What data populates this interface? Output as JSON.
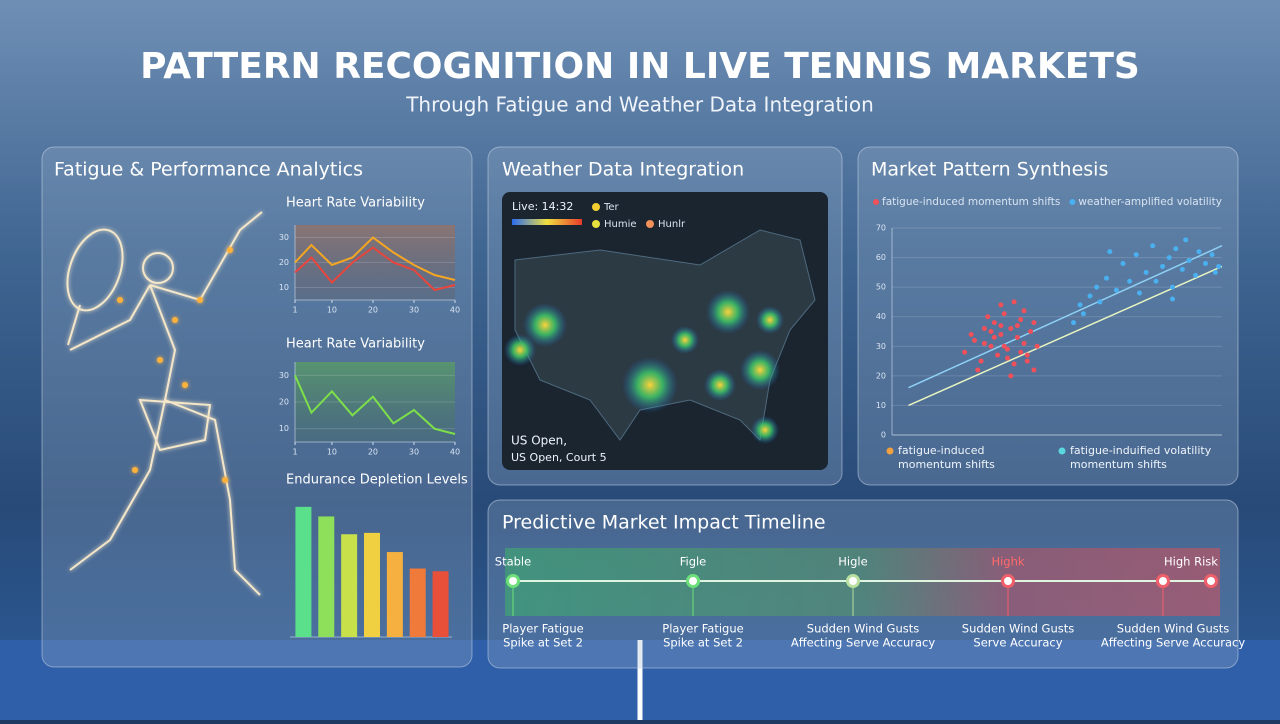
{
  "header": {
    "title": "PATTERN RECOGNITION IN LIVE TENNIS MARKETS",
    "subtitle": "Through Fatigue and Weather Data Integration"
  },
  "panels": {
    "fatigue": {
      "title": "Fatigue & Performance Analytics"
    },
    "weather": {
      "title": "Weather Data Integration",
      "live_label": "Live: 14:32",
      "legend": [
        "Ter",
        "Humie",
        "Hunlr"
      ],
      "venue": "US Open,",
      "court": "US Open, Court 5"
    },
    "market": {
      "title": "Market Pattern Synthesis",
      "footer_legend": [
        {
          "text": "fatigue-induced momentum shifts",
          "color": "#f0a040"
        },
        {
          "text": "fatigue-induified volatility momentum shifts",
          "color": "#5ad8e0"
        }
      ]
    }
  },
  "chart_data": [
    {
      "type": "line",
      "title": "Heart Rate Variability",
      "x": [
        1,
        5,
        10,
        15,
        20,
        25,
        30,
        35,
        40
      ],
      "xlim": [
        1,
        40
      ],
      "xticks": [
        1,
        10,
        20,
        30,
        40
      ],
      "ylim": [
        5,
        35
      ],
      "yticks": [
        10,
        20,
        30
      ],
      "series": [
        {
          "color": "#f5a623",
          "values": [
            20,
            27,
            19,
            22,
            30,
            24,
            19,
            15,
            13
          ]
        },
        {
          "color": "#e8453c",
          "values": [
            16,
            22,
            12,
            20,
            26,
            20,
            17,
            9,
            11
          ]
        }
      ]
    },
    {
      "type": "line",
      "title": "Heart Rate Variability",
      "x": [
        1,
        5,
        10,
        15,
        20,
        25,
        30,
        35,
        40
      ],
      "xlim": [
        1,
        40
      ],
      "xticks": [
        1,
        10,
        20,
        30,
        40
      ],
      "ylim": [
        5,
        35
      ],
      "yticks": [
        10,
        20,
        30
      ],
      "series": [
        {
          "color": "#7de04a",
          "values": [
            30,
            16,
            24,
            15,
            22,
            12,
            17,
            10,
            8
          ]
        }
      ]
    },
    {
      "type": "bar",
      "title": "Endurance Depletion Levels",
      "categories": [
        null,
        null,
        null,
        null,
        null,
        null,
        null
      ],
      "values": [
        95,
        88,
        75,
        76,
        62,
        50,
        48
      ],
      "ylim": [
        0,
        100
      ],
      "colors": [
        "#5ae08a",
        "#8ee05a",
        "#c8e04a",
        "#f0d040",
        "#f5b040",
        "#f07a3a",
        "#e8503a"
      ]
    },
    {
      "type": "scatter",
      "xlim": [
        0,
        100
      ],
      "ylim": [
        0,
        70
      ],
      "yticks": [
        0,
        10,
        20,
        30,
        40,
        50,
        60,
        70
      ],
      "series": [
        {
          "name": "fatigue-induced momentum shifts",
          "color": "#f0505a",
          "x": [
            22,
            25,
            27,
            28,
            30,
            31,
            32,
            33,
            34,
            35,
            36,
            37,
            38,
            39,
            40,
            41,
            42,
            43,
            44,
            26,
            29,
            33,
            36,
            38,
            40,
            24,
            31,
            35,
            39,
            43,
            30,
            34,
            37,
            41,
            28,
            33
          ],
          "values": [
            28,
            32,
            25,
            36,
            30,
            38,
            27,
            34,
            41,
            29,
            36,
            24,
            33,
            39,
            31,
            27,
            35,
            22,
            30,
            22,
            40,
            44,
            20,
            37,
            42,
            34,
            33,
            26,
            28,
            38,
            35,
            30,
            45,
            25,
            31,
            37
          ]
        },
        {
          "name": "weather-amplified volatility",
          "color": "#4ab0f0",
          "x": [
            55,
            57,
            58,
            60,
            62,
            63,
            65,
            66,
            68,
            70,
            72,
            74,
            75,
            77,
            79,
            80,
            82,
            84,
            85,
            86,
            88,
            90,
            92,
            93,
            95,
            97,
            98,
            99,
            85,
            89
          ],
          "values": [
            38,
            44,
            41,
            47,
            50,
            45,
            53,
            62,
            49,
            58,
            52,
            61,
            48,
            55,
            64,
            52,
            57,
            60,
            50,
            63,
            56,
            59,
            54,
            62,
            58,
            61,
            55,
            57,
            46,
            66
          ]
        }
      ],
      "trend_lines": [
        {
          "color": "#8fd0f5",
          "x": [
            5,
            100
          ],
          "values": [
            16,
            64
          ]
        },
        {
          "color": "#e8f5c0",
          "x": [
            5,
            100
          ],
          "values": [
            10,
            57
          ]
        }
      ]
    }
  ],
  "timeline": {
    "title": "Predictive Market Impact Timeline",
    "stages": [
      {
        "label": "Stable",
        "color": "#6ee07a",
        "event": [
          "Player Fatigue",
          "Spike at Set 2"
        ]
      },
      {
        "label": "Figle",
        "color": "#6ee07a",
        "event": [
          "Player Fatigue",
          "Spike at Set 2"
        ]
      },
      {
        "label": "Higle",
        "color": "#b8e0a0",
        "event": [
          "Sudden Wind Gusts",
          "Affecting Serve Accuracy"
        ]
      },
      {
        "label": "Highk",
        "color": "#f0606a",
        "event": [
          "Sudden Wind Gusts",
          "Serve Accuracy"
        ]
      },
      {
        "label": "High Risk",
        "color": "#f0606a",
        "event": [
          "Sudden Wind Gusts",
          "Affecting Serve Accuracy"
        ]
      }
    ]
  }
}
